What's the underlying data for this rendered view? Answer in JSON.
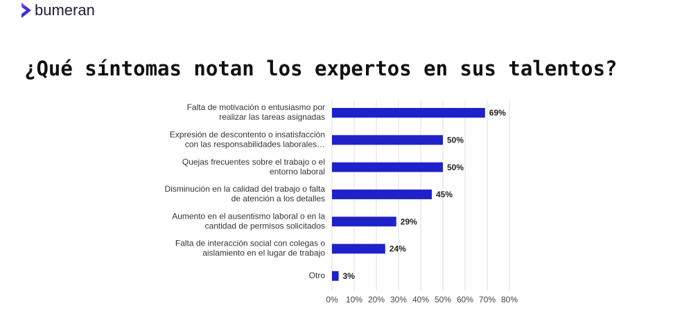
{
  "header": {
    "logo": "bumeran"
  },
  "chart_data": {
    "type": "hbar",
    "title": "¿Qué síntomas notan los expertos en sus talentos?",
    "categories": [
      [
        "Falta de motivación o entusiasmo por",
        "realizar las tareas asignadas"
      ],
      [
        "Expresión de descontento o insatisfacción",
        "con las responsabilidades laborales…"
      ],
      [
        "Quejas frecuentes sobre el trabajo o el",
        "entorno laboral"
      ],
      [
        "Disminución en la calidad del trabajo o falta",
        "de atención a los detalles"
      ],
      [
        "Aumento en el ausentismo laboral o en la",
        "cantidad de permisos solicitados"
      ],
      [
        "Falta de interacción social con colegas o",
        "aislamiento en el lugar de trabajo"
      ],
      [
        "Otro"
      ]
    ],
    "values": [
      69,
      50,
      50,
      45,
      29,
      24,
      3
    ],
    "value_labels": [
      "69%",
      "50%",
      "50%",
      "45%",
      "29%",
      "24%",
      "3%"
    ],
    "color": "#1f22c9",
    "xlim": [
      0,
      80
    ],
    "xticks": [
      {
        "value": 0,
        "label": "0%"
      },
      {
        "value": 10,
        "label": "10%"
      },
      {
        "value": 20,
        "label": "20%"
      },
      {
        "value": 30,
        "label": "30%"
      },
      {
        "value": 40,
        "label": "40%"
      },
      {
        "value": 50,
        "label": "50%"
      },
      {
        "value": 60,
        "label": "60%"
      },
      {
        "value": 70,
        "label": "70%"
      },
      {
        "value": 80,
        "label": "80%"
      }
    ],
    "grid": true
  }
}
